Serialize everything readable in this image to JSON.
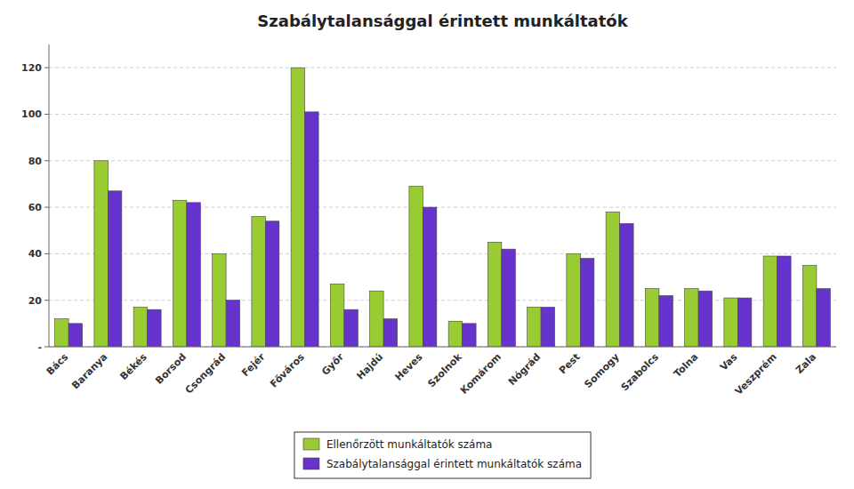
{
  "chart_data": {
    "type": "bar",
    "title": "Szabálytalansággal érintett munkáltatók",
    "categories": [
      "Bács",
      "Baranya",
      "Békés",
      "Borsod",
      "Csongrád",
      "Fejér",
      "Főváros",
      "Győr",
      "Hajdú",
      "Heves",
      "Szolnok",
      "Komárom",
      "Nógrád",
      "Pest",
      "Somogy",
      "Szabolcs",
      "Tolna",
      "Vas",
      "Veszprém",
      "Zala"
    ],
    "series": [
      {
        "name": "Ellenőrzött munkáltatók száma",
        "color": "#99CC33",
        "values": [
          12,
          80,
          17,
          63,
          40,
          56,
          120,
          27,
          24,
          69,
          11,
          45,
          17,
          40,
          58,
          25,
          25,
          21,
          39,
          35
        ]
      },
      {
        "name": "Szabálytalansággal érintett munkáltatók száma",
        "color": "#6633CC",
        "values": [
          10,
          67,
          16,
          62,
          20,
          54,
          101,
          16,
          12,
          60,
          10,
          42,
          17,
          38,
          53,
          22,
          24,
          21,
          39,
          25
        ]
      }
    ],
    "ylim": [
      0,
      130
    ],
    "yticks": [
      {
        "value": 0,
        "label": "-"
      },
      20,
      40,
      60,
      80,
      100,
      120
    ],
    "grid": true,
    "legend": "bottom"
  }
}
